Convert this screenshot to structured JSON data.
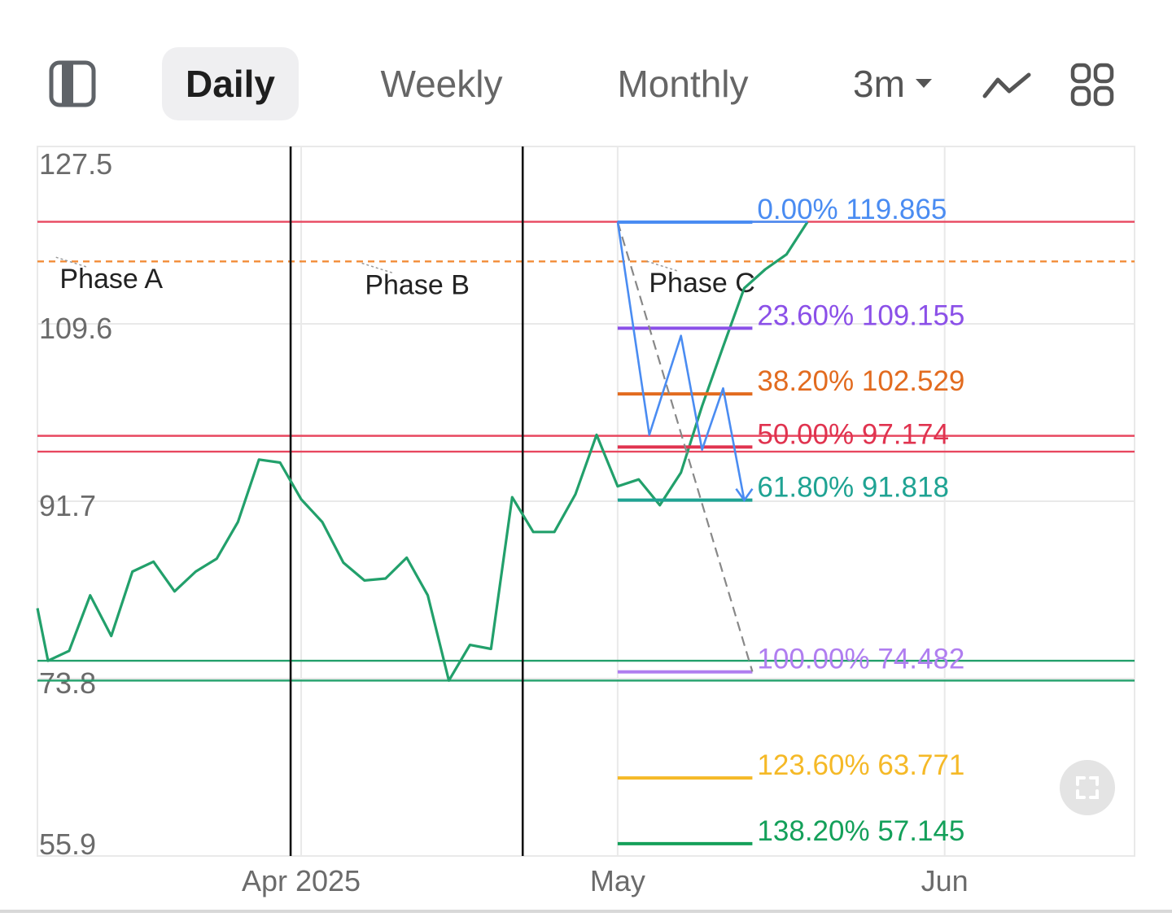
{
  "toolbar": {
    "tabs": [
      {
        "label": "Daily",
        "active": true
      },
      {
        "label": "Weekly",
        "active": false
      },
      {
        "label": "Monthly",
        "active": false
      }
    ],
    "range_label": "3m",
    "icons": [
      "sidebar-toggle-icon",
      "line-chart-icon",
      "grid-layout-icon",
      "chevron-down-icon",
      "fullscreen-icon"
    ]
  },
  "chart_data": {
    "type": "line",
    "y_ticks": [
      127.5,
      109.6,
      91.7,
      73.8,
      55.9
    ],
    "ylim": [
      55.9,
      127.5
    ],
    "x_ticks": [
      {
        "label": "Apr 2025",
        "date": "2025-04-01"
      },
      {
        "label": "May",
        "date": "2025-05-01"
      },
      {
        "label": "Jun",
        "date": "2025-06-01"
      }
    ],
    "xlim": [
      "2025-03-07",
      "2025-06-19"
    ],
    "grid": true,
    "series": [
      {
        "color": "#22a06b",
        "points": [
          [
            "2025-03-07",
            80.9
          ],
          [
            "2025-03-08",
            75.6
          ],
          [
            "2025-03-10",
            76.6
          ],
          [
            "2025-03-12",
            82.2
          ],
          [
            "2025-03-14",
            78.1
          ],
          [
            "2025-03-16",
            84.6
          ],
          [
            "2025-03-18",
            85.6
          ],
          [
            "2025-03-20",
            82.6
          ],
          [
            "2025-03-22",
            84.6
          ],
          [
            "2025-03-24",
            85.9
          ],
          [
            "2025-03-26",
            89.6
          ],
          [
            "2025-03-28",
            95.9
          ],
          [
            "2025-03-30",
            95.6
          ],
          [
            "2025-04-01",
            91.9
          ],
          [
            "2025-04-03",
            89.6
          ],
          [
            "2025-04-05",
            85.5
          ],
          [
            "2025-04-07",
            83.7
          ],
          [
            "2025-04-09",
            83.9
          ],
          [
            "2025-04-11",
            86.0
          ],
          [
            "2025-04-13",
            82.2
          ],
          [
            "2025-04-15",
            73.6
          ],
          [
            "2025-04-17",
            77.2
          ],
          [
            "2025-04-19",
            76.8
          ],
          [
            "2025-04-21",
            92.1
          ],
          [
            "2025-04-23",
            88.6
          ],
          [
            "2025-04-25",
            88.6
          ],
          [
            "2025-04-27",
            92.4
          ],
          [
            "2025-04-29",
            98.4
          ],
          [
            "2025-05-01",
            93.2
          ],
          [
            "2025-05-03",
            93.9
          ],
          [
            "2025-05-05",
            91.3
          ],
          [
            "2025-05-07",
            94.6
          ],
          [
            "2025-05-09",
            101.3
          ],
          [
            "2025-05-11",
            107.3
          ],
          [
            "2025-05-13",
            113.2
          ],
          [
            "2025-05-15",
            115.1
          ],
          [
            "2025-05-17",
            116.6
          ],
          [
            "2025-05-19",
            119.9
          ]
        ]
      }
    ],
    "reference_lines": [
      {
        "value": 119.9,
        "color": "#e8475f",
        "style": "solid"
      },
      {
        "value": 115.9,
        "color": "#f28c38",
        "style": "dashed"
      },
      {
        "value": 98.3,
        "color": "#e8475f",
        "style": "solid"
      },
      {
        "value": 96.7,
        "color": "#e8475f",
        "style": "solid"
      },
      {
        "value": 75.6,
        "color": "#22a06b",
        "style": "solid"
      },
      {
        "value": 73.6,
        "color": "#22a06b",
        "style": "solid"
      }
    ],
    "phase_markers": [
      {
        "date": "2025-03-31",
        "color": "#111111"
      },
      {
        "date": "2025-04-22",
        "color": "#111111"
      }
    ],
    "phase_labels": [
      {
        "label": "Phase A",
        "date": "2025-03-14",
        "value": 113.2
      },
      {
        "label": "Phase B",
        "date": "2025-04-12",
        "value": 112.6
      },
      {
        "label": "Phase C",
        "date": "2025-05-09",
        "value": 112.8
      }
    ],
    "fibonacci": {
      "start_date": "2025-05-01",
      "end_date": "2025-05-13",
      "levels": [
        {
          "label": "0.00% 119.865",
          "value": 119.865,
          "color": "#4a8cf2"
        },
        {
          "label": "23.60% 109.155",
          "value": 109.155,
          "color": "#8b50e8"
        },
        {
          "label": "38.20% 102.529",
          "value": 102.529,
          "color": "#e26b1f"
        },
        {
          "label": "50.00% 97.174",
          "value": 97.174,
          "color": "#e0334f"
        },
        {
          "label": "61.80% 91.818",
          "value": 91.818,
          "color": "#1fa393"
        },
        {
          "label": "100.00% 74.482",
          "value": 74.482,
          "color": "#b07ef0"
        },
        {
          "label": "123.60% 63.771",
          "value": 63.771,
          "color": "#f5b927"
        },
        {
          "label": "138.20% 57.145",
          "value": 57.145,
          "color": "#14a05a"
        }
      ]
    },
    "projection_path": {
      "color": "#4a8cf2",
      "points": [
        [
          "2025-05-01",
          119.9
        ],
        [
          "2025-05-04",
          98.4
        ],
        [
          "2025-05-07",
          108.4
        ],
        [
          "2025-05-09",
          96.9
        ],
        [
          "2025-05-11",
          103.1
        ],
        [
          "2025-05-13",
          91.8
        ]
      ]
    },
    "trend_line": {
      "color": "#888888",
      "style": "dashed",
      "points": [
        [
          "2025-05-01",
          119.9
        ],
        [
          "2025-05-13",
          74.5
        ]
      ]
    }
  }
}
